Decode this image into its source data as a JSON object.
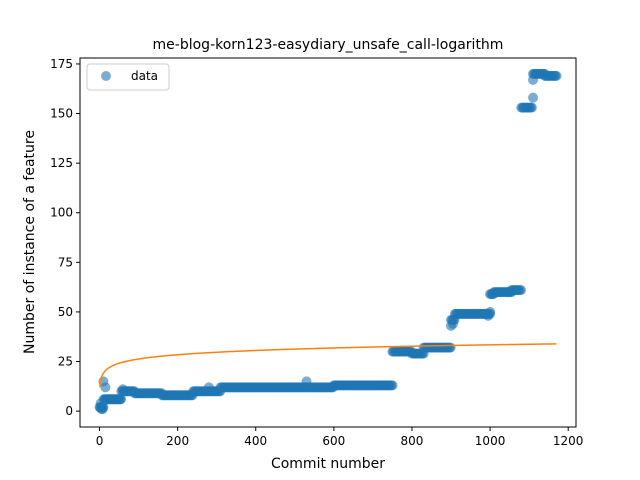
{
  "chart_data": {
    "type": "scatter",
    "title": "me-blog-korn123-easydiary_unsafe_call-logarithm",
    "xlabel": "Commit number",
    "ylabel": "Number of instance of a feature",
    "xlim": [
      -50,
      1220
    ],
    "ylim": [
      -8,
      178
    ],
    "xticks": [
      0,
      200,
      400,
      600,
      800,
      1000,
      1200
    ],
    "yticks": [
      0,
      25,
      50,
      75,
      100,
      125,
      150,
      175
    ],
    "grid": false,
    "legend_position": "upper-left",
    "colors": {
      "data": "#1f77b4",
      "fit": "#ff7f0e"
    },
    "series": [
      {
        "name": "data",
        "kind": "scatter",
        "segments": [
          {
            "x_start": 0,
            "x_end": 10,
            "y": 2,
            "step": 2
          },
          {
            "x_start": 11,
            "x_end": 55,
            "y": 6,
            "step": 2
          },
          {
            "x_start": 56,
            "x_end": 90,
            "y": 10,
            "step": 3
          },
          {
            "x_start": 90,
            "x_end": 160,
            "y": 9,
            "step": 3
          },
          {
            "x_start": 160,
            "x_end": 240,
            "y": 8,
            "step": 3
          },
          {
            "x_start": 240,
            "x_end": 310,
            "y": 10,
            "step": 3
          },
          {
            "x_start": 310,
            "x_end": 600,
            "y": 12,
            "step": 3
          },
          {
            "x_start": 600,
            "x_end": 750,
            "y": 13,
            "step": 3
          },
          {
            "x_start": 750,
            "x_end": 800,
            "y": 30,
            "step": 3
          },
          {
            "x_start": 800,
            "x_end": 830,
            "y": 29,
            "step": 3
          },
          {
            "x_start": 830,
            "x_end": 900,
            "y": 32,
            "step": 3
          },
          {
            "x_start": 900,
            "x_end": 910,
            "y": 46,
            "step": 3
          },
          {
            "x_start": 910,
            "x_end": 1000,
            "y": 49,
            "step": 3
          },
          {
            "x_start": 1000,
            "x_end": 1010,
            "y": 59,
            "step": 3
          },
          {
            "x_start": 1010,
            "x_end": 1055,
            "y": 60,
            "step": 3
          },
          {
            "x_start": 1055,
            "x_end": 1080,
            "y": 61,
            "step": 3
          },
          {
            "x_start": 1080,
            "x_end": 1107,
            "y": 153,
            "step": 3
          },
          {
            "x_start": 1110,
            "x_end": 1140,
            "y": 170,
            "step": 3
          },
          {
            "x_start": 1140,
            "x_end": 1170,
            "y": 169,
            "step": 3
          }
        ],
        "points": [
          [
            3,
            4
          ],
          [
            5,
            1
          ],
          [
            8,
            1
          ],
          [
            10,
            15
          ],
          [
            15,
            12
          ],
          [
            60,
            11
          ],
          [
            280,
            12
          ],
          [
            530,
            15
          ],
          [
            900,
            43
          ],
          [
            905,
            44
          ],
          [
            995,
            48
          ],
          [
            1000,
            50
          ],
          [
            1110,
            158
          ],
          [
            1110,
            167
          ]
        ]
      },
      {
        "name": "",
        "kind": "line",
        "function": "logarithmic",
        "a": 3.1,
        "b": 12.0,
        "x_start": 1,
        "x_end": 1170
      }
    ]
  }
}
